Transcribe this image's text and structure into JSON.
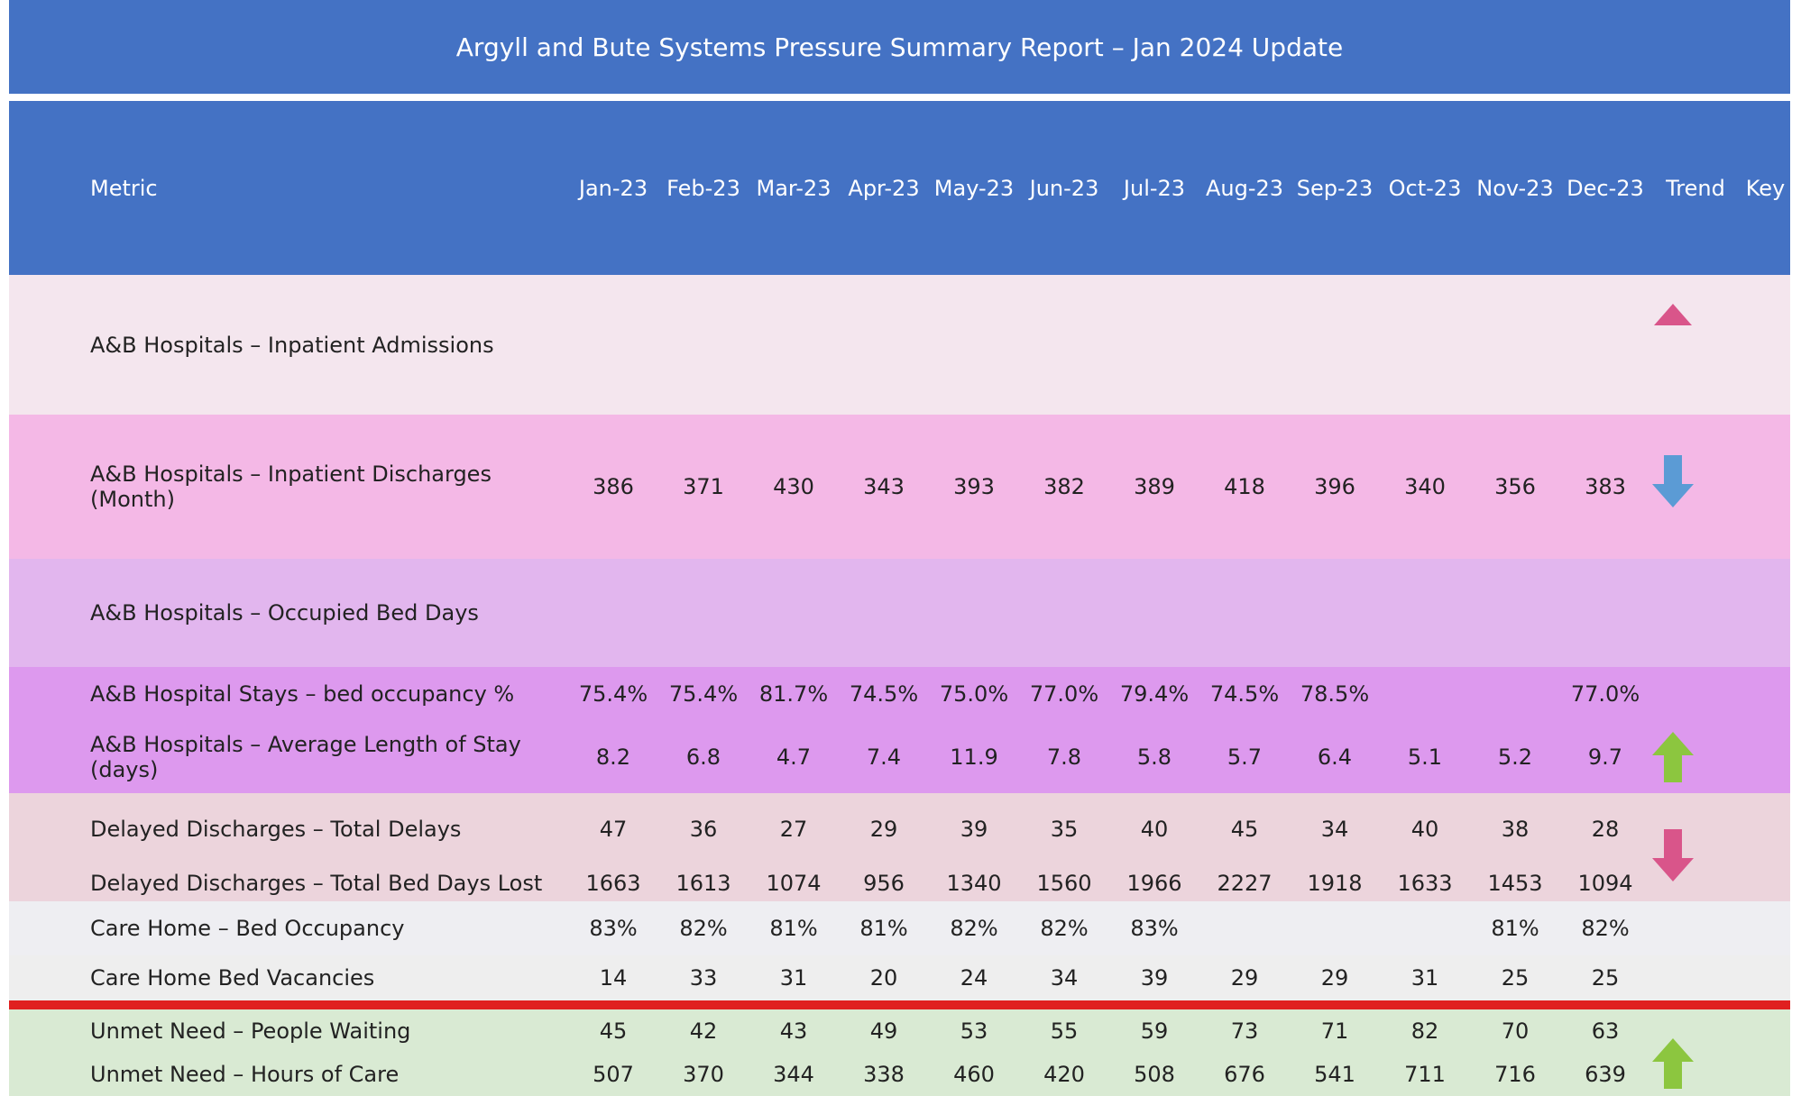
{
  "header": {
    "title": "Argyll and Bute Systems Pressure Summary Report – Jan 2024 Update"
  },
  "table": {
    "columns": [
      "Metric",
      "Jan-23",
      "Feb-23",
      "Mar-23",
      "Apr-23",
      "May-23",
      "Jun-23",
      "Jul-23",
      "Aug-23",
      "Sep-23",
      "Oct-23",
      "Nov-23",
      "Dec-23",
      "Trend",
      "Key"
    ],
    "rows": [
      {
        "metric": "A&B Hospitals – Inpatient Admissions",
        "values": [
          null,
          null,
          null,
          null,
          null,
          null,
          null,
          null,
          null,
          null,
          null,
          null
        ]
      },
      {
        "metric": "A&B Hospitals – Inpatient Discharges (Month)",
        "values": [
          "386",
          "371",
          "430",
          "343",
          "393",
          "382",
          "389",
          "418",
          "396",
          "340",
          "356",
          "383"
        ]
      },
      {
        "metric": "A&B Hospitals – Occupied Bed Days",
        "values": [
          null,
          null,
          null,
          null,
          null,
          null,
          null,
          null,
          null,
          null,
          null,
          null
        ]
      },
      {
        "metric": "A&B Hospital Stays – bed occupancy %",
        "values": [
          "75.4%",
          "75.4%",
          "81.7%",
          "74.5%",
          "75.0%",
          "77.0%",
          "79.4%",
          "74.5%",
          "78.5%",
          null,
          null,
          "77.0%"
        ]
      },
      {
        "metric": "A&B Hospitals – Average Length of Stay (days)",
        "values": [
          "8.2",
          "6.8",
          "4.7",
          "7.4",
          "11.9",
          "7.8",
          "5.8",
          "5.7",
          "6.4",
          "5.1",
          "5.2",
          "9.7"
        ]
      },
      {
        "metric": "Delayed Discharges – Total Delays",
        "values": [
          "47",
          "36",
          "27",
          "29",
          "39",
          "35",
          "40",
          "45",
          "34",
          "40",
          "38",
          "28"
        ]
      },
      {
        "metric": "Delayed Discharges – Total Bed Days Lost",
        "values": [
          "1663",
          "1613",
          "1074",
          "956",
          "1340",
          "1560",
          "1966",
          "2227",
          "1918",
          "1633",
          "1453",
          "1094"
        ]
      },
      {
        "metric": "Care Home – Bed Occupancy",
        "values": [
          "83%",
          "82%",
          "81%",
          "81%",
          "82%",
          "82%",
          "83%",
          null,
          null,
          null,
          "81%",
          "82%"
        ]
      },
      {
        "metric": "Care Home Bed Vacancies",
        "values": [
          "14",
          "33",
          "31",
          "20",
          "24",
          "34",
          "39",
          "29",
          "29",
          "31",
          "25",
          "25"
        ]
      },
      {
        "metric": "Unmet Need – People Waiting",
        "values": [
          "45",
          "42",
          "43",
          "49",
          "53",
          "55",
          "59",
          "73",
          "71",
          "82",
          "70",
          "63"
        ]
      },
      {
        "metric": "Unmet Need – Hours of Care",
        "values": [
          "507",
          "370",
          "344",
          "338",
          "460",
          "420",
          "508",
          "676",
          "541",
          "711",
          "716",
          "639"
        ]
      }
    ]
  }
}
